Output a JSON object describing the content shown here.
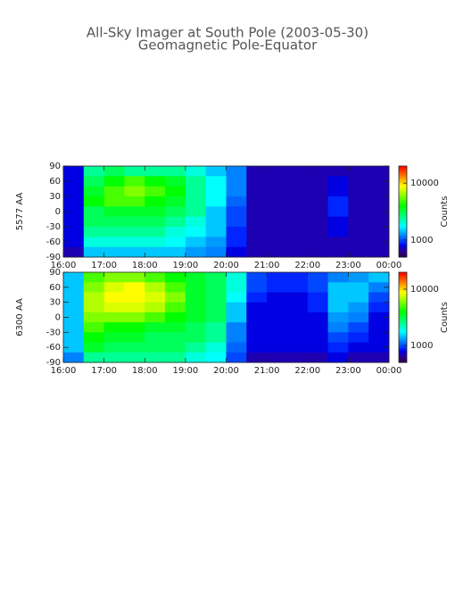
{
  "chart_data": [
    {
      "type": "heatmap",
      "title": "All-Sky Imager at South Pole (2003-05-30)",
      "subtitle": "Geomagnetic Pole-Equator",
      "ylabel": "5577 AA",
      "colorbar_label": "Counts",
      "colormap": "rainbow",
      "color_scale": "log",
      "clim": [
        500,
        20000
      ],
      "cticks": [
        1000,
        10000
      ],
      "x": [
        16.25,
        16.75,
        17.25,
        17.75,
        18.25,
        18.75,
        19.25,
        19.75,
        20.25,
        20.75,
        21.25,
        21.75,
        22.25,
        22.75,
        23.25,
        23.75
      ],
      "y": [
        80,
        60,
        40,
        20,
        0,
        -20,
        -40,
        -60,
        -80
      ],
      "values": [
        [
          800,
          2500,
          3000,
          2500,
          2500,
          2500,
          2000,
          1500,
          1200,
          700,
          700,
          700,
          700,
          700,
          700,
          700
        ],
        [
          800,
          3000,
          4000,
          5000,
          4000,
          3500,
          2500,
          1800,
          1200,
          700,
          700,
          700,
          700,
          800,
          700,
          700
        ],
        [
          800,
          3500,
          5000,
          6000,
          5000,
          4000,
          2500,
          1800,
          1200,
          700,
          700,
          700,
          700,
          800,
          700,
          700
        ],
        [
          800,
          4000,
          5000,
          5000,
          4000,
          3500,
          2500,
          1800,
          1100,
          700,
          700,
          700,
          700,
          900,
          700,
          700
        ],
        [
          800,
          3000,
          3500,
          3500,
          3500,
          3000,
          2500,
          1500,
          1000,
          700,
          700,
          700,
          700,
          900,
          700,
          700
        ],
        [
          800,
          3000,
          3000,
          3000,
          3000,
          2500,
          2000,
          1500,
          1000,
          700,
          700,
          700,
          700,
          800,
          700,
          700
        ],
        [
          800,
          2500,
          2500,
          2500,
          2500,
          2000,
          1800,
          1500,
          900,
          700,
          700,
          700,
          700,
          800,
          700,
          700
        ],
        [
          800,
          2000,
          2000,
          2000,
          2000,
          1800,
          1500,
          1300,
          900,
          700,
          700,
          700,
          700,
          700,
          700,
          700
        ],
        [
          700,
          1500,
          1500,
          1500,
          1500,
          1500,
          1300,
          1200,
          800,
          700,
          700,
          700,
          700,
          700,
          700,
          700
        ]
      ],
      "xlim": [
        16,
        24
      ],
      "xticks": [
        {
          "value": 16,
          "label": "16:00"
        },
        {
          "value": 17,
          "label": "17:00"
        },
        {
          "value": 18,
          "label": "18:00"
        },
        {
          "value": 19,
          "label": "19:00"
        },
        {
          "value": 20,
          "label": "20:00"
        },
        {
          "value": 21,
          "label": "21:00"
        },
        {
          "value": 22,
          "label": "22:00"
        },
        {
          "value": 23,
          "label": "23:00"
        },
        {
          "value": 24,
          "label": "00:00"
        }
      ],
      "ylim": [
        -90,
        90
      ],
      "yticks": [
        -90,
        -60,
        -30,
        0,
        30,
        60,
        90
      ]
    },
    {
      "type": "heatmap",
      "ylabel": "6300 AA",
      "colorbar_label": "Counts",
      "colormap": "rainbow",
      "color_scale": "log",
      "clim": [
        500,
        20000
      ],
      "cticks": [
        1000,
        10000
      ],
      "x": [
        16.25,
        16.75,
        17.25,
        17.75,
        18.25,
        18.75,
        19.25,
        19.75,
        20.25,
        20.75,
        21.25,
        21.75,
        22.25,
        22.75,
        23.25,
        23.75
      ],
      "y": [
        80,
        60,
        40,
        20,
        0,
        -20,
        -40,
        -60,
        -80
      ],
      "values": [
        [
          1500,
          5000,
          6000,
          6000,
          5000,
          4000,
          3500,
          3000,
          2000,
          1000,
          900,
          900,
          1000,
          1200,
          1300,
          1500
        ],
        [
          1500,
          6000,
          8000,
          9000,
          7000,
          5000,
          3500,
          3000,
          2000,
          1000,
          900,
          900,
          1000,
          1500,
          1500,
          1200
        ],
        [
          1500,
          7000,
          9000,
          9000,
          8000,
          6000,
          3500,
          3000,
          1800,
          900,
          800,
          800,
          900,
          1500,
          1500,
          1000
        ],
        [
          1500,
          7000,
          8000,
          8000,
          7000,
          5000,
          3500,
          3000,
          1500,
          800,
          800,
          800,
          900,
          1500,
          1300,
          900
        ],
        [
          1500,
          6000,
          6000,
          6000,
          5000,
          4000,
          3500,
          3000,
          1500,
          800,
          800,
          800,
          800,
          1300,
          1200,
          800
        ],
        [
          1500,
          5000,
          4000,
          4000,
          3500,
          3500,
          3000,
          2500,
          1200,
          800,
          800,
          800,
          800,
          1200,
          1000,
          800
        ],
        [
          1500,
          4000,
          3500,
          3500,
          3000,
          3000,
          3000,
          2500,
          1200,
          800,
          800,
          800,
          800,
          1000,
          900,
          800
        ],
        [
          1500,
          3500,
          3000,
          3000,
          3000,
          3000,
          2500,
          2000,
          1100,
          800,
          800,
          800,
          800,
          900,
          800,
          800
        ],
        [
          1200,
          2500,
          2500,
          2500,
          2500,
          2500,
          2000,
          1800,
          1000,
          700,
          700,
          700,
          700,
          800,
          700,
          700
        ]
      ],
      "xlim": [
        16,
        24
      ],
      "xticks": [
        {
          "value": 16,
          "label": "16:00"
        },
        {
          "value": 17,
          "label": "17:00"
        },
        {
          "value": 18,
          "label": "18:00"
        },
        {
          "value": 19,
          "label": "19:00"
        },
        {
          "value": 20,
          "label": "20:00"
        },
        {
          "value": 21,
          "label": "21:00"
        },
        {
          "value": 22,
          "label": "22:00"
        },
        {
          "value": 23,
          "label": "23:00"
        },
        {
          "value": 24,
          "label": "00:00"
        }
      ],
      "ylim": [
        -90,
        90
      ],
      "yticks": [
        -90,
        -60,
        -30,
        0,
        30,
        60,
        90
      ]
    }
  ]
}
